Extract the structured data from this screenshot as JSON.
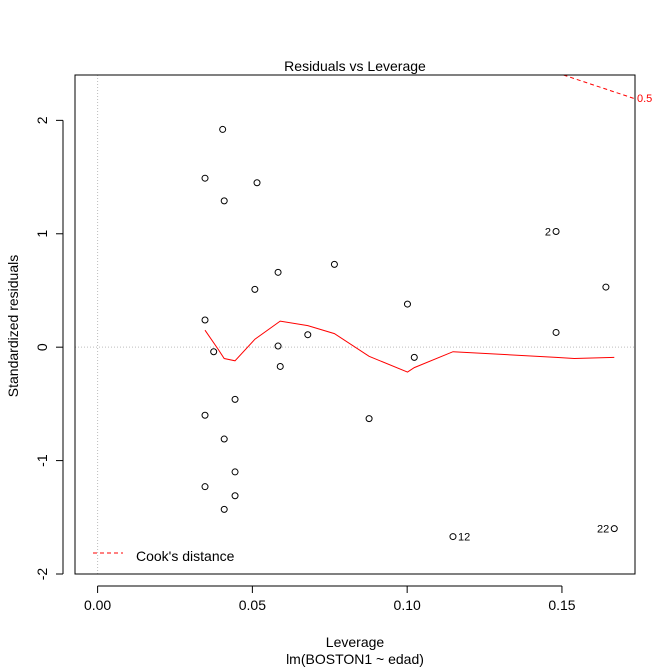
{
  "chart_data": {
    "type": "scatter",
    "title": "Residuals vs Leverage",
    "xlabel": "Leverage",
    "subtitle": "lm(BOSTON1 ~ edad)",
    "ylabel": "Standardized residuals",
    "xlim": [
      -0.0073,
      0.1736
    ],
    "ylim": [
      -2.0,
      2.4
    ],
    "x_ticks": [
      0.0,
      0.05,
      0.1,
      0.15
    ],
    "x_tick_labels": [
      "0.00",
      "0.05",
      "0.10",
      "0.15"
    ],
    "y_ticks": [
      -2,
      -1,
      0,
      1,
      2
    ],
    "y_tick_labels": [
      "-2",
      "-1",
      "0",
      "1",
      "2"
    ],
    "reference_lines": {
      "h": 0,
      "v": 0
    },
    "points": [
      {
        "x": 0.0404,
        "y": 1.92
      },
      {
        "x": 0.0347,
        "y": 1.49
      },
      {
        "x": 0.0515,
        "y": 1.45
      },
      {
        "x": 0.0409,
        "y": 1.29
      },
      {
        "x": 0.1481,
        "y": 1.02,
        "label": "2"
      },
      {
        "x": 0.0583,
        "y": 0.66
      },
      {
        "x": 0.0765,
        "y": 0.73
      },
      {
        "x": 0.0508,
        "y": 0.51
      },
      {
        "x": 0.1001,
        "y": 0.38
      },
      {
        "x": 0.1642,
        "y": 0.53
      },
      {
        "x": 0.0347,
        "y": 0.24
      },
      {
        "x": 0.1481,
        "y": 0.13
      },
      {
        "x": 0.0679,
        "y": 0.11
      },
      {
        "x": 0.0583,
        "y": 0.01
      },
      {
        "x": 0.0375,
        "y": -0.04
      },
      {
        "x": 0.1023,
        "y": -0.09
      },
      {
        "x": 0.059,
        "y": -0.17
      },
      {
        "x": 0.0444,
        "y": -0.46
      },
      {
        "x": 0.0347,
        "y": -0.6
      },
      {
        "x": 0.0877,
        "y": -0.63
      },
      {
        "x": 0.0409,
        "y": -0.81
      },
      {
        "x": 0.0444,
        "y": -1.1
      },
      {
        "x": 0.0347,
        "y": -1.23
      },
      {
        "x": 0.0444,
        "y": -1.31
      },
      {
        "x": 0.0409,
        "y": -1.43
      },
      {
        "x": 0.1148,
        "y": -1.67,
        "label": "12"
      },
      {
        "x": 0.1669,
        "y": -1.6,
        "label": "22"
      }
    ],
    "smoother": {
      "name": "",
      "color": "#ff0000",
      "x": [
        0.0347,
        0.039,
        0.0409,
        0.0444,
        0.0508,
        0.059,
        0.0679,
        0.0765,
        0.0877,
        0.1001,
        0.1023,
        0.1148,
        0.1481,
        0.154,
        0.1669
      ],
      "y": [
        0.15,
        -0.02,
        -0.1,
        -0.12,
        0.07,
        0.23,
        0.19,
        0.12,
        -0.08,
        -0.22,
        -0.18,
        -0.04,
        -0.09,
        -0.1,
        -0.09
      ]
    },
    "cooks_distance": {
      "name": "Cook's distance",
      "color": "#ff0000",
      "contour_label": "0.5",
      "x": [
        0.1505,
        0.1736
      ],
      "y": [
        2.4,
        2.19
      ]
    },
    "legend": {
      "position": "bottom-left",
      "entries": [
        "Cook's distance"
      ]
    },
    "grid": false
  }
}
